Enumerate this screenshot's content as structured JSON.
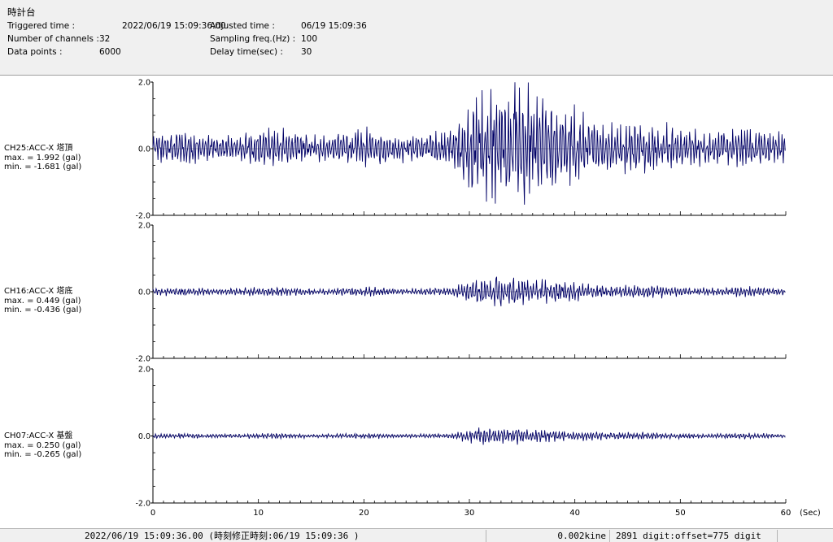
{
  "header": {
    "station": "時計台",
    "triggered_label": "Triggered time :",
    "triggered_value": "2022/06/19 15:09:36.00",
    "channels_label": "Number of channels :",
    "channels_value": "32",
    "points_label": "Data points :",
    "points_value": "6000",
    "adjusted_label": "Adjusted time :",
    "adjusted_value": "06/19 15:09:36",
    "sampling_label": "Sampling freq.(Hz) :",
    "sampling_value": "100",
    "delay_label": "Delay time(sec) :",
    "delay_value": "30"
  },
  "channels": [
    {
      "title": "CH25:ACC-X 塔頂",
      "max": "max. = 1.992 (gal)",
      "min": "min. = -1.681 (gal)"
    },
    {
      "title": "CH16:ACC-X 塔底",
      "max": "max. = 0.449 (gal)",
      "min": "min. = -0.436 (gal)"
    },
    {
      "title": "CH07:ACC-X 基盤",
      "max": "max. = 0.250 (gal)",
      "min": "min. = -0.265 (gal)"
    }
  ],
  "status": {
    "time": "2022/06/19 15:09:36.00  (時刻修正時刻:06/19 15:09:36  )",
    "kine": "0.002kine",
    "digit": "2891 digit:offset=775 digit"
  },
  "chart_data": {
    "type": "line",
    "x_unit_label": "(Sec)",
    "xlim": [
      0,
      60
    ],
    "x_ticks": [
      "0",
      "10",
      "20",
      "30",
      "40",
      "50",
      "60"
    ],
    "ylim": [
      -2.0,
      2.0
    ],
    "y_ticks": [
      "2.0",
      "0.0",
      "-2.0"
    ],
    "line_color": "#000066",
    "series": [
      {
        "name": "CH25:ACC-X 塔頂",
        "max": 1.992,
        "min": -1.681
      },
      {
        "name": "CH16:ACC-X 塔底",
        "max": 0.449,
        "min": -0.436
      },
      {
        "name": "CH07:ACC-X 基盤",
        "max": 0.25,
        "min": -0.265
      }
    ]
  }
}
